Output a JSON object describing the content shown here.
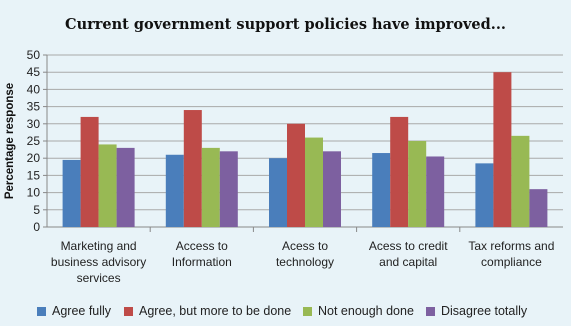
{
  "chart_data": {
    "type": "bar",
    "title": "Current government support policies have improved...",
    "ylabel": "Percentage response",
    "xlabel": "",
    "ylim": [
      0,
      50
    ],
    "yticks": [
      0,
      5,
      10,
      15,
      20,
      25,
      30,
      35,
      40,
      45,
      50
    ],
    "grid": true,
    "legend_position": "bottom",
    "categories": [
      [
        "Marketing and",
        "business advisory",
        "services"
      ],
      [
        "Access to",
        "Information"
      ],
      [
        "Acess to",
        "technology"
      ],
      [
        "Acess to credit",
        "and capital"
      ],
      [
        "Tax reforms and",
        "compliance"
      ]
    ],
    "series": [
      {
        "name": "Agree fully",
        "color": "#4a7ebb",
        "values": [
          19.5,
          21,
          20,
          21.5,
          18.5
        ]
      },
      {
        "name": "Agree, but more to be done",
        "color": "#be4b48",
        "values": [
          32,
          34,
          30,
          32,
          45
        ]
      },
      {
        "name": "Not enough done",
        "color": "#98b954",
        "values": [
          24,
          23,
          26,
          25,
          26.5
        ]
      },
      {
        "name": "Disagree totally",
        "color": "#7d60a0",
        "values": [
          23,
          22,
          22,
          20.5,
          11
        ]
      }
    ]
  }
}
